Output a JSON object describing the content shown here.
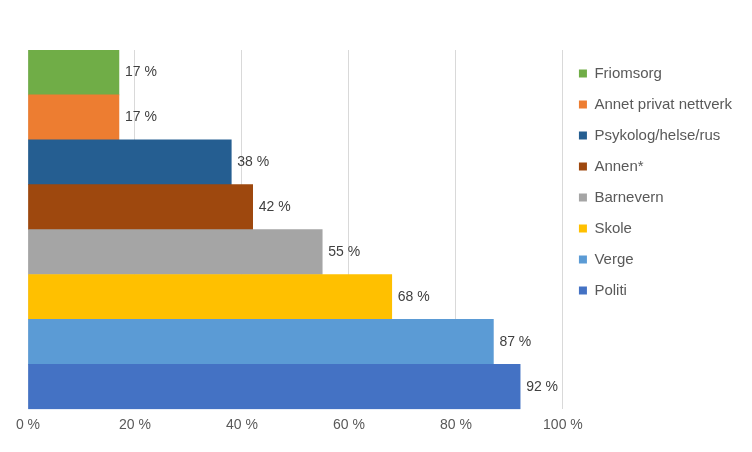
{
  "chart_data": {
    "type": "bar",
    "orientation": "horizontal",
    "categories": [
      "Friomsorg",
      "Annet privat nettverk",
      "Psykolog/helse/rus",
      "Annen*",
      "Barnevern",
      "Skole",
      "Verge",
      "Politi"
    ],
    "values": [
      17,
      17,
      38,
      42,
      55,
      68,
      87,
      92
    ],
    "value_labels": [
      "17 %",
      "17 %",
      "38 %",
      "42 %",
      "55 %",
      "68 %",
      "87 %",
      "92 %"
    ],
    "colors": [
      "#70ad47",
      "#ed7d31",
      "#255e91",
      "#9e480e",
      "#a5a5a5",
      "#ffc000",
      "#5b9bd5",
      "#4472c4"
    ],
    "xlim": [
      0,
      100
    ],
    "xticks": [
      {
        "value": 0,
        "label": "0 %"
      },
      {
        "value": 20,
        "label": "20 %"
      },
      {
        "value": 40,
        "label": "40 %"
      },
      {
        "value": 60,
        "label": "60 %"
      },
      {
        "value": 80,
        "label": "80 %"
      },
      {
        "value": 100,
        "label": "100 %"
      }
    ],
    "grid": true,
    "legend": "right",
    "data_labels": true,
    "tick_labels": "x"
  }
}
